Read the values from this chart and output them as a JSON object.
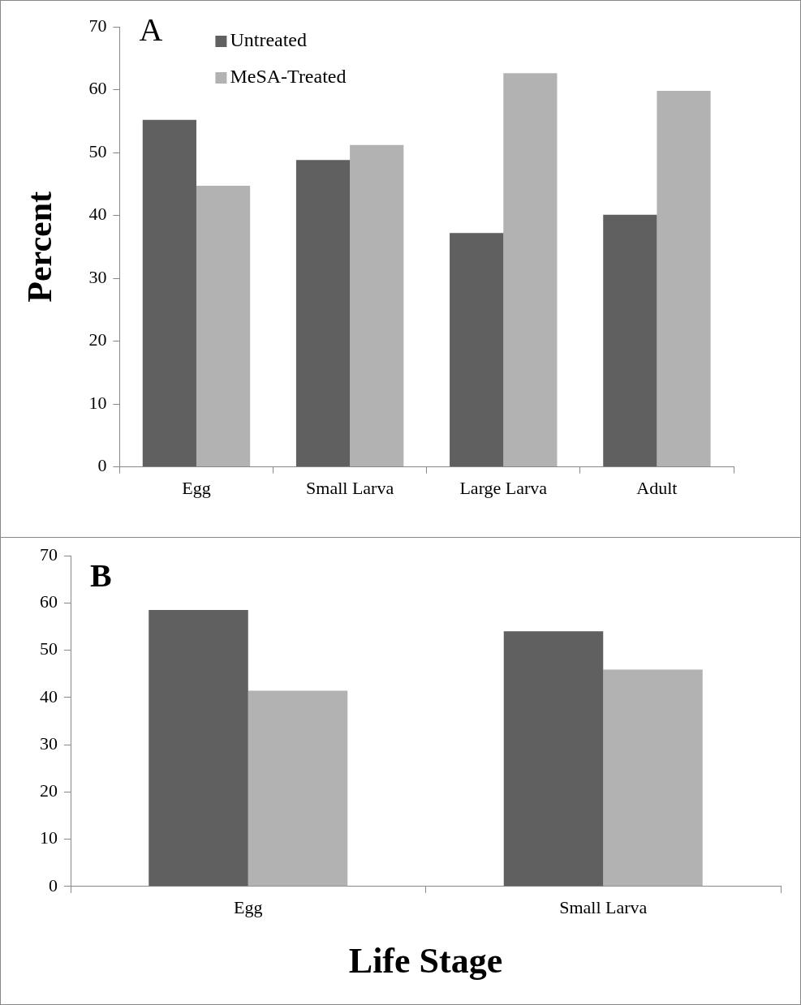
{
  "chart_data": [
    {
      "type": "bar",
      "ylabel": "Percent",
      "annotations": [
        "A"
      ],
      "categories": [
        "Egg",
        "Small Larva",
        "Large Larva",
        "Adult"
      ],
      "series": [
        {
          "name": "Untreated",
          "color": "#606060",
          "values": [
            55.2,
            48.8,
            37.2,
            40.1
          ]
        },
        {
          "name": "MeSA-Treated",
          "color": "#b2b2b2",
          "values": [
            44.7,
            51.2,
            62.6,
            59.8
          ]
        }
      ],
      "ylim": [
        0,
        70
      ],
      "yticks": [
        0,
        10,
        20,
        30,
        40,
        50,
        60,
        70
      ],
      "grid": false,
      "legend": "top left"
    },
    {
      "type": "bar",
      "xlabel": "Life Stage",
      "annotations": [
        "B"
      ],
      "categories": [
        "Egg",
        "Small Larva"
      ],
      "series": [
        {
          "color": "#606060",
          "values": [
            58.5,
            54.0
          ]
        },
        {
          "color": "#b2b2b2",
          "values": [
            41.4,
            45.9
          ]
        }
      ],
      "ylim": [
        0,
        70
      ],
      "yticks": [
        0,
        10,
        20,
        30,
        40,
        50,
        60,
        70
      ],
      "grid": false
    }
  ]
}
